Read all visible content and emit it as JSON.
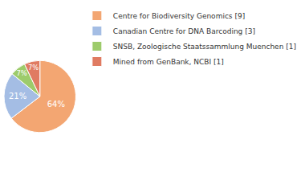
{
  "chart_data": {
    "type": "pie",
    "categories": [
      "Centre for Biodiversity Genomics [9]",
      "Canadian Centre for DNA Barcoding [3]",
      "SNSB, Zoologische Staatssammlung Muenchen [1]",
      "Mined from GenBank, NCBI [1]"
    ],
    "values": [
      64,
      21,
      7,
      7
    ],
    "value_labels": [
      "64%",
      "21%",
      "7%",
      "7%"
    ],
    "colors": [
      "#f3a672",
      "#a4bde4",
      "#9dcb6b",
      "#e07b62"
    ],
    "data_labels": true,
    "legend": "right"
  }
}
